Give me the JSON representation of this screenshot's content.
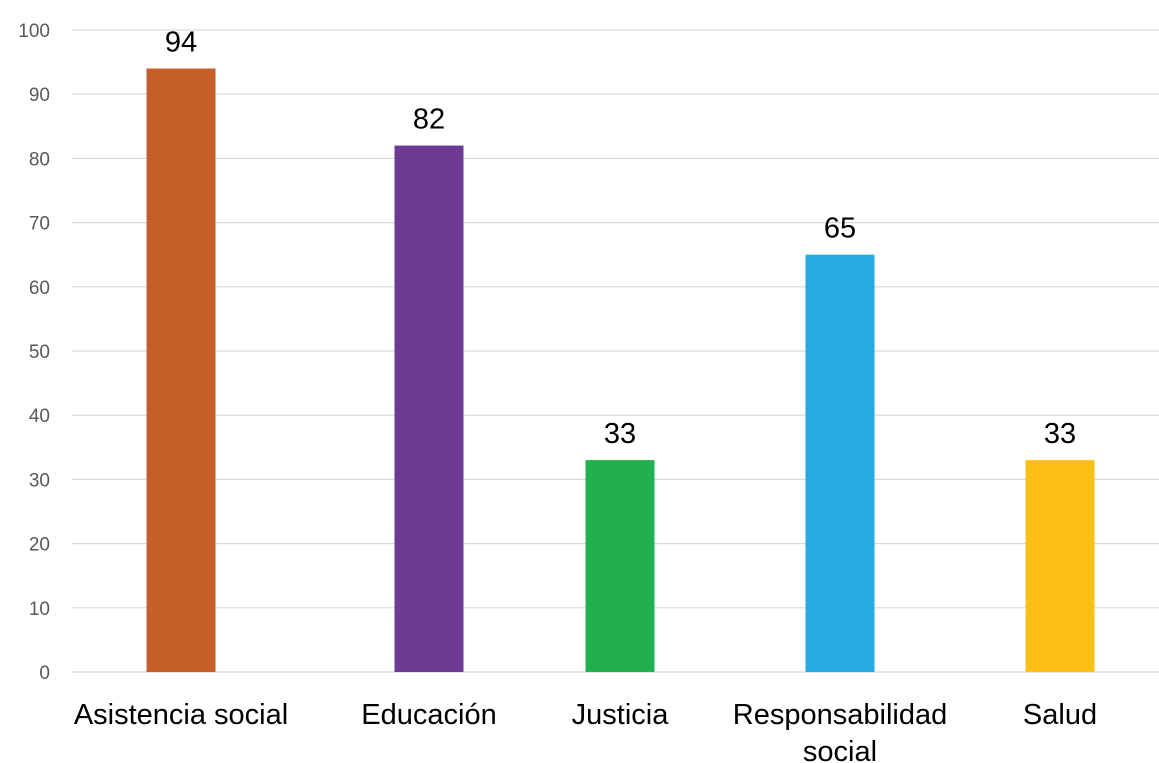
{
  "chart_data": {
    "type": "bar",
    "categories": [
      {
        "lines": [
          "Asistencia social"
        ]
      },
      {
        "lines": [
          "Educación"
        ]
      },
      {
        "lines": [
          "Justicia"
        ]
      },
      {
        "lines": [
          "Responsabilidad",
          "social"
        ]
      },
      {
        "lines": [
          "Salud"
        ]
      }
    ],
    "values": [
      94,
      82,
      33,
      65,
      33
    ],
    "colors": [
      "#c55e28",
      "#6d3b94",
      "#21b04b",
      "#27aae1",
      "#fbbf16"
    ],
    "ylim": [
      0,
      100
    ],
    "yticks": [
      0,
      10,
      20,
      30,
      40,
      50,
      60,
      70,
      80,
      90,
      100
    ],
    "grid": true,
    "data_labels": true,
    "title": "",
    "xlabel": "",
    "ylabel": ""
  }
}
